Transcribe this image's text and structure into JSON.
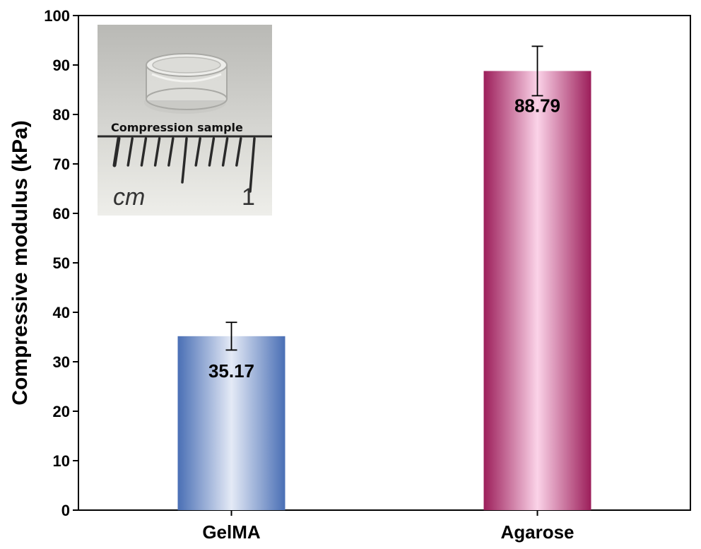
{
  "chart_data": {
    "type": "bar",
    "categories": [
      "GelMA",
      "Agarose"
    ],
    "values": [
      35.17,
      88.79
    ],
    "errors": [
      2.8,
      5.0
    ],
    "data_labels": [
      "35.17",
      "88.79"
    ],
    "bar_colors": [
      {
        "edge": "#4a6fb5",
        "center": "#e4eaf6"
      },
      {
        "edge": "#9c1e5a",
        "center": "#fbd3e8"
      }
    ],
    "ylabel": "Compressive modulus (kPa)",
    "xlabel": "",
    "ylim": [
      0,
      100
    ],
    "yticks": [
      0,
      10,
      20,
      30,
      40,
      50,
      60,
      70,
      80,
      90,
      100
    ],
    "grid": false,
    "legend": "none"
  },
  "inset": {
    "caption": "Compression sample",
    "ruler_unit": "cm",
    "ruler_number": "1"
  }
}
